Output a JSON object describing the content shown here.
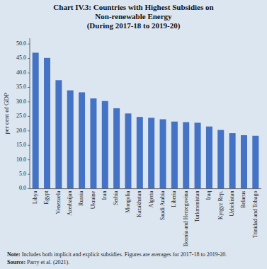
{
  "chart_data": {
    "type": "bar",
    "title": "Chart IV.3: Countries with Highest Subsidies on\nNon-renewable Energy\n(During 2017-18 to 2019-20)",
    "ylabel": "per cent of GDP",
    "categories": [
      "Libya",
      "Egypt",
      "Venezuela",
      "Azerbaijan",
      "Russia",
      "Ukraine",
      "Iran",
      "Serbia",
      "Mongolia",
      "Kazakhstan",
      "Algeria",
      "Saudi Arabia",
      "Liberia",
      "Bosnia and Herzegovina",
      "Turkmenistan",
      "Iraq",
      "Kyrgyz Rep.",
      "Uzbekistan",
      "Belarus",
      "Trinidad and Tobago"
    ],
    "values": [
      47.0,
      45.2,
      37.5,
      34.0,
      33.3,
      31.2,
      30.3,
      27.8,
      26.0,
      24.8,
      24.5,
      24.0,
      23.2,
      23.0,
      22.8,
      21.5,
      20.3,
      19.2,
      18.5,
      18.3
    ],
    "color": "#4472C4",
    "ylim": [
      0,
      52
    ],
    "yticks": [
      {
        "value": 0,
        "label": "0.0"
      },
      {
        "value": 5,
        "label": "5.0"
      },
      {
        "value": 10,
        "label": "10.0"
      },
      {
        "value": 15,
        "label": "15.0"
      },
      {
        "value": 20,
        "label": "20.0"
      },
      {
        "value": 25,
        "label": "25.0"
      },
      {
        "value": 30,
        "label": "30.0"
      },
      {
        "value": 35,
        "label": "35.0"
      },
      {
        "value": 40,
        "label": "40.0"
      },
      {
        "value": 45,
        "label": "45.0"
      },
      {
        "value": 50,
        "label": "50.0"
      }
    ],
    "grid": false,
    "annotations": [
      "Note: Includes both implicit and explicit subsidies. Figures are averages for 2017-18 to 2019-20.",
      "Source: Parry et al. (2021)."
    ]
  }
}
